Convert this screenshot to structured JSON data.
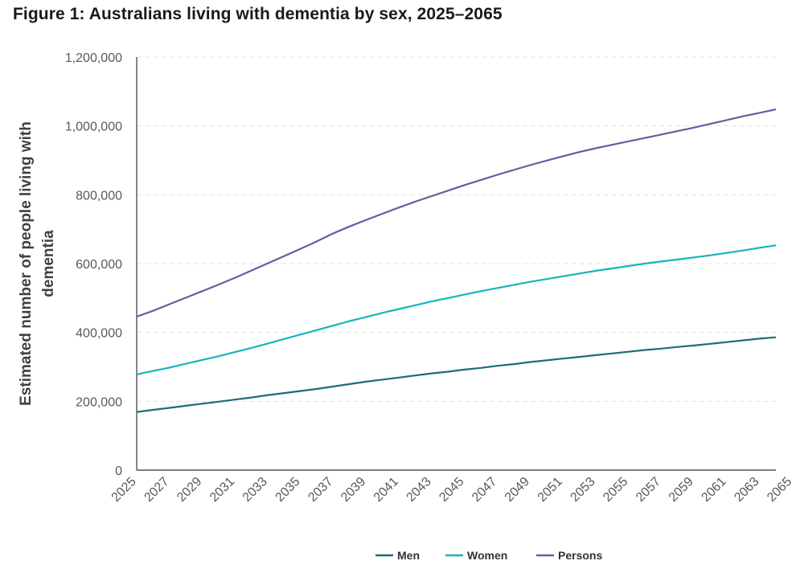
{
  "title": "Figure 1: Australians living with dementia by sex, 2025–2065",
  "chart_data": {
    "type": "line",
    "title": "Figure 1: Australians living with dementia by sex, 2025–2065",
    "xlabel": "",
    "ylabel": "Estimated number of people living with dementia",
    "ylabel_lines": [
      "Estimated number of people living with",
      "dementia"
    ],
    "ylim": [
      0,
      1200000
    ],
    "yticks": [
      0,
      200000,
      400000,
      600000,
      800000,
      1000000,
      1200000
    ],
    "ytick_labels": [
      "0",
      "200,000",
      "400,000",
      "600,000",
      "800,000",
      "1,000,000",
      "1,200,000"
    ],
    "x": [
      2025,
      2026,
      2027,
      2028,
      2029,
      2030,
      2031,
      2032,
      2033,
      2034,
      2035,
      2036,
      2037,
      2038,
      2039,
      2040,
      2041,
      2042,
      2043,
      2044,
      2045,
      2046,
      2047,
      2048,
      2049,
      2050,
      2051,
      2052,
      2053,
      2054,
      2055,
      2056,
      2057,
      2058,
      2059,
      2060,
      2061,
      2062,
      2063,
      2064,
      2065
    ],
    "xtick_labels": [
      "2025",
      "2027",
      "2029",
      "2031",
      "2033",
      "2035",
      "2037",
      "2039",
      "2041",
      "2043",
      "2045",
      "2047",
      "2049",
      "2051",
      "2053",
      "2055",
      "2057",
      "2059",
      "2061",
      "2063",
      "2065"
    ],
    "grid": true,
    "legend_position": "bottom",
    "series": [
      {
        "name": "Men",
        "color": "#1f6b78",
        "values": [
          169000,
          175000,
          181000,
          187000,
          193000,
          199000,
          205000,
          211000,
          218000,
          224000,
          230000,
          236000,
          243000,
          250000,
          257000,
          263000,
          269000,
          275000,
          281000,
          286000,
          292000,
          297000,
          303000,
          308000,
          314000,
          319000,
          324000,
          329000,
          334000,
          339000,
          344000,
          349000,
          353000,
          358000,
          362000,
          367000,
          372000,
          377000,
          382000,
          386000,
          391000
        ]
      },
      {
        "name": "Women",
        "color": "#17b3bd",
        "values": [
          278000,
          288000,
          298000,
          309000,
          320000,
          331000,
          343000,
          355000,
          368000,
          381000,
          394000,
          407000,
          420000,
          433000,
          445000,
          457000,
          468000,
          479000,
          490000,
          500000,
          510000,
          520000,
          529000,
          538000,
          547000,
          555000,
          563000,
          571000,
          579000,
          586000,
          593000,
          600000,
          606000,
          612000,
          618000,
          624000,
          631000,
          638000,
          646000,
          653000,
          660000
        ]
      },
      {
        "name": "Persons",
        "color": "#6c5aa0",
        "values": [
          446000,
          463000,
          482000,
          501000,
          520000,
          539000,
          559000,
          580000,
          601000,
          622000,
          643000,
          665000,
          688000,
          708000,
          727000,
          745000,
          763000,
          780000,
          796000,
          812000,
          828000,
          843000,
          858000,
          872000,
          886000,
          899000,
          912000,
          924000,
          935000,
          945000,
          955000,
          965000,
          975000,
          985000,
          995000,
          1006000,
          1017000,
          1028000,
          1038000,
          1048000,
          1058000
        ]
      }
    ]
  }
}
